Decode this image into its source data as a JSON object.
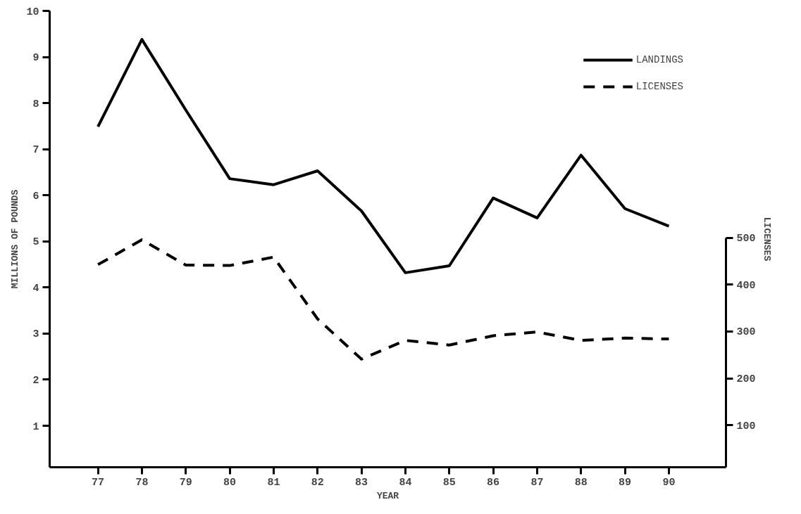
{
  "chart_data": {
    "type": "line",
    "xlabel": "YEAR",
    "ylabel": "MILLIONS OF POUNDS",
    "y2label": "LICENSES",
    "x": [
      77,
      78,
      79,
      80,
      81,
      82,
      83,
      84,
      85,
      86,
      87,
      88,
      89,
      90
    ],
    "xlim": [
      75.9,
      91.3
    ],
    "xticks": [
      77,
      78,
      79,
      80,
      81,
      82,
      83,
      84,
      85,
      86,
      87,
      88,
      89,
      90
    ],
    "ylim": [
      0.1,
      10
    ],
    "yticks": [
      1,
      2,
      3,
      4,
      5,
      6,
      7,
      8,
      9,
      10
    ],
    "y2lim": [
      10,
      985
    ],
    "y2ticks": [
      100,
      200,
      300,
      400,
      500
    ],
    "series": [
      {
        "name": "LANDINGS",
        "color": "#000000",
        "line_style": "solid",
        "values": [
          7.49,
          9.38,
          7.85,
          6.36,
          6.23,
          6.53,
          5.66,
          4.32,
          4.47,
          5.94,
          5.51,
          6.87,
          5.71,
          5.33
        ]
      },
      {
        "name": "LICENSES",
        "color": "#000000",
        "line_style": "dashed",
        "axis": "y2",
        "values": [
          443,
          496,
          442,
          441,
          459,
          327,
          241,
          281,
          271,
          291,
          299,
          281,
          286,
          284
        ]
      }
    ],
    "grid": false,
    "legend": "top right",
    "marker": "none"
  }
}
